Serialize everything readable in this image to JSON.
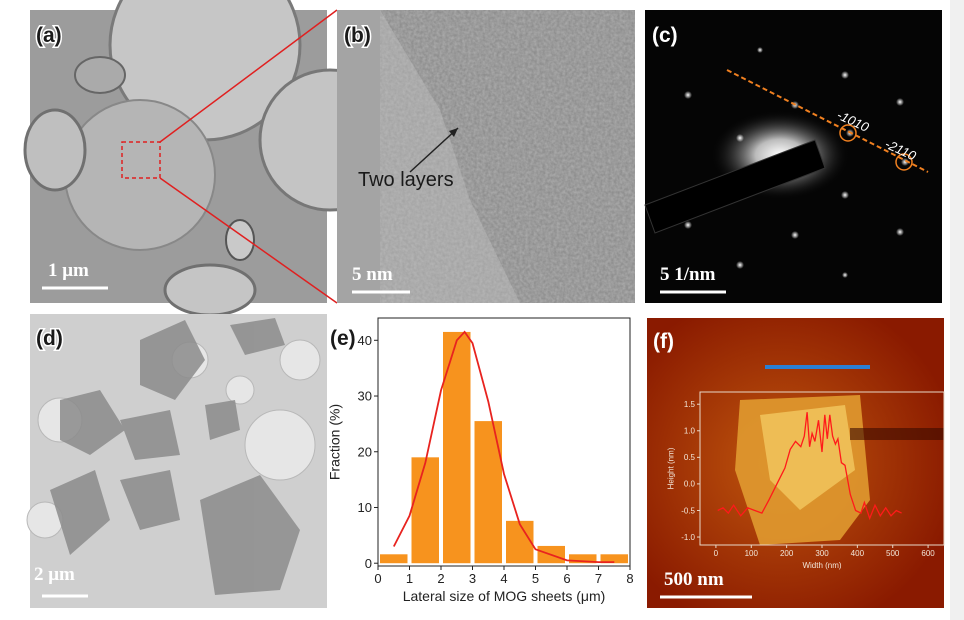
{
  "panels": [
    {
      "label": "(a)",
      "scale_bar": "1 μm"
    },
    {
      "label": "(b)",
      "scale_bar": "5 nm",
      "annotation": "Two layers"
    },
    {
      "label": "(c)",
      "scale_bar": "5 1/nm",
      "annotations": [
        "-1010",
        "-2110"
      ]
    },
    {
      "label": "(d)",
      "scale_bar": "2 μm"
    },
    {
      "label": "(f)",
      "scale_bar": "500 nm"
    }
  ],
  "chart_data": [
    {
      "type": "histogram",
      "panel_label": "(e)",
      "x_label": "Lateral size of MOG sheets (μm)",
      "y_label": "Fraction (%)",
      "bins": [
        0,
        1,
        2,
        3,
        4,
        5,
        6,
        7,
        8
      ],
      "values": [
        1.6,
        19,
        41.5,
        25.5,
        7.6,
        3.1,
        1.6,
        1.6
      ],
      "color": "#f7931e",
      "fit": {
        "color": "#e8231f",
        "x": [
          0.5,
          1,
          1.5,
          2,
          2.5,
          2.75,
          3,
          3.5,
          4,
          4.5,
          5,
          6,
          7,
          7.5
        ],
        "values": [
          3,
          8.5,
          18,
          31,
          40,
          41.5,
          39.5,
          29,
          16,
          7,
          2.5,
          0.5,
          0.2,
          0.2
        ]
      },
      "xlim": [
        0,
        8
      ],
      "xticks": [
        0,
        1,
        2,
        3,
        4,
        5,
        6,
        7,
        8
      ],
      "ylim": [
        -0.5,
        44
      ],
      "yticks": [
        0,
        10,
        20,
        30,
        40
      ]
    },
    {
      "type": "line",
      "x_label": "Width (nm)",
      "y_label": "Height (nm)",
      "x": [
        5,
        20,
        35,
        50,
        70,
        90,
        110,
        130,
        150,
        165,
        180,
        195,
        210,
        225,
        240,
        250,
        258,
        265,
        272,
        280,
        290,
        300,
        308,
        315,
        322,
        330,
        338,
        345,
        355,
        365,
        380,
        395,
        410,
        420,
        435,
        450,
        465,
        480,
        495,
        510,
        525
      ],
      "values": [
        -0.5,
        -0.45,
        -0.55,
        -0.4,
        -0.6,
        -0.45,
        -0.5,
        -0.55,
        -0.3,
        -0.1,
        0.1,
        0.3,
        0.65,
        0.8,
        0.7,
        0.9,
        1.35,
        0.7,
        0.95,
        0.8,
        1.2,
        0.6,
        1.3,
        0.85,
        1.3,
        0.9,
        0.75,
        0.85,
        0.4,
        0.35,
        -0.2,
        -0.5,
        -0.55,
        -0.35,
        -0.65,
        -0.4,
        -0.6,
        -0.45,
        -0.6,
        -0.5,
        -0.55
      ],
      "color": "#ff1a1a",
      "xlim": [
        -45,
        645
      ],
      "xticks": [
        0,
        100,
        200,
        300,
        400,
        500,
        600
      ],
      "ylim": [
        -1.15,
        1.73
      ],
      "yticks": [
        {
          "value": -1,
          "label": "-1.0"
        },
        {
          "value": -0.5,
          "label": "-0.5"
        },
        {
          "value": 0,
          "label": "0.0"
        },
        {
          "value": 0.5,
          "label": "0.5"
        },
        {
          "value": 1,
          "label": "1.0"
        },
        {
          "value": 1.5,
          "label": "1.5"
        }
      ]
    }
  ]
}
